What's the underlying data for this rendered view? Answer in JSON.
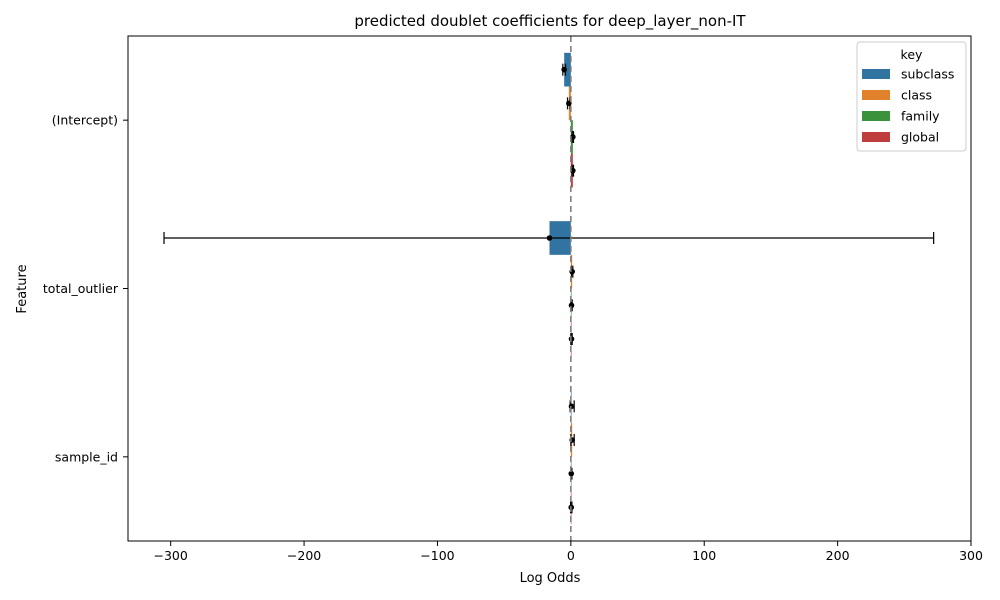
{
  "chart_data": {
    "type": "bar",
    "orientation": "horizontal",
    "title": "predicted doublet coefficients for deep_layer_non-IT",
    "xlabel": "Log Odds",
    "ylabel": "Feature",
    "xlim": [
      -332,
      300
    ],
    "xticks": [
      -300,
      -200,
      -100,
      0,
      100,
      200,
      300
    ],
    "xtick_labels": [
      "−300",
      "−200",
      "−100",
      "0",
      "100",
      "200",
      "300"
    ],
    "reference_line": 0,
    "categories": [
      "(Intercept)",
      "total_outlier",
      "sample_id"
    ],
    "legend": {
      "title": "key",
      "placement": "top-right"
    },
    "series": [
      {
        "name": "subclass",
        "color": "#3274a1",
        "values": [
          -5,
          -16,
          0.5
        ],
        "ci_low": [
          -6,
          -305,
          -0.5
        ],
        "ci_high": [
          -4,
          272,
          2.5
        ]
      },
      {
        "name": "class",
        "color": "#e1812c",
        "values": [
          -1.5,
          1,
          1
        ],
        "ci_low": [
          -2.5,
          0.5,
          0
        ],
        "ci_high": [
          -0.5,
          1.5,
          2.5
        ]
      },
      {
        "name": "family",
        "color": "#3a923a",
        "values": [
          1.5,
          0.5,
          0.3
        ],
        "ci_low": [
          1,
          0,
          -0.2
        ],
        "ci_high": [
          2,
          1,
          0.8
        ]
      },
      {
        "name": "global",
        "color": "#c03d3e",
        "values": [
          1.5,
          0.5,
          0.3
        ],
        "ci_low": [
          1,
          0,
          -0.2
        ],
        "ci_high": [
          2,
          1,
          0.8
        ]
      }
    ]
  }
}
